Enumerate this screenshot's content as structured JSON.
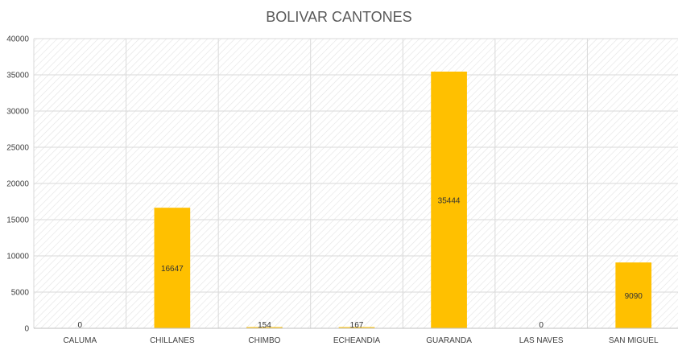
{
  "chart_data": {
    "type": "bar",
    "title": "BOLIVAR CANTONES",
    "categories": [
      "CALUMA",
      "CHILLANES",
      "CHIMBO",
      "ECHEANDIA",
      "GUARANDA",
      "LAS NAVES",
      "SAN MIGUEL"
    ],
    "values": [
      0,
      16647,
      154,
      167,
      35444,
      0,
      9090
    ],
    "data_labels": [
      "0",
      "16647",
      "154",
      "167",
      "35444",
      "0",
      "9090"
    ],
    "ylim": [
      0,
      40000
    ],
    "yticks": [
      0,
      5000,
      10000,
      15000,
      20000,
      25000,
      30000,
      35000,
      40000
    ],
    "ytick_labels": [
      "0",
      "5000",
      "10000",
      "15000",
      "20000",
      "25000",
      "30000",
      "35000",
      "40000"
    ],
    "grid": true,
    "legend": "none",
    "bar_color": "#FFC000",
    "gridline_color": "#d9d9d9",
    "plot_pattern": "diagonal-hatch"
  }
}
